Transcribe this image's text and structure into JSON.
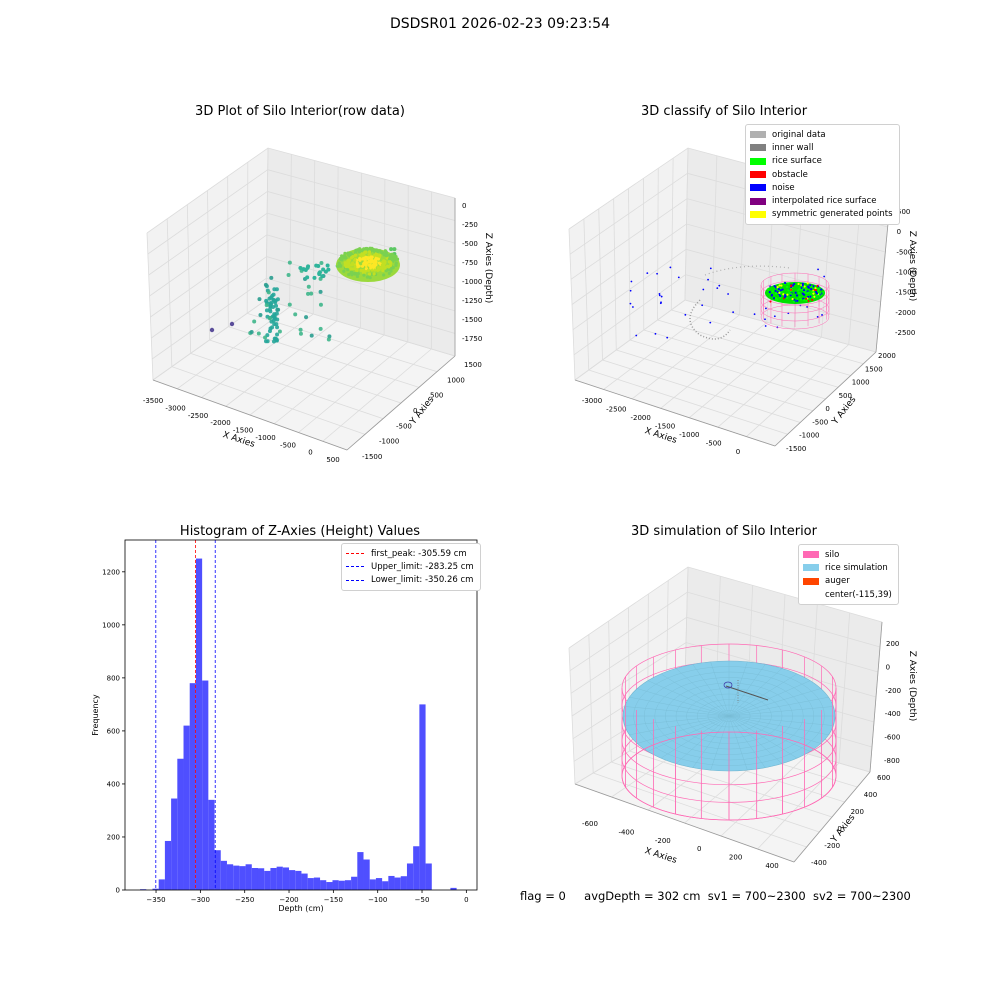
{
  "figure": {
    "title": "DSDSR01 2026-02-23 09:23:54"
  },
  "panels": {
    "raw": {
      "title": "3D Plot of Silo Interior(row data)",
      "x_label": "X Axies",
      "y_label": "Y Axies",
      "z_label": "Z Axies (Depth)",
      "x_ticks": [
        "-3500",
        "-3000",
        "-2500",
        "-2000",
        "-1500",
        "-1000",
        "-500",
        "0",
        "500"
      ],
      "y_ticks": [
        "-1500",
        "-1000",
        "-500",
        "0",
        "500",
        "1000",
        "1500"
      ],
      "z_ticks": [
        "0",
        "-250",
        "-500",
        "-750",
        "-1000",
        "-1250",
        "-1500",
        "-1750"
      ]
    },
    "classify": {
      "title": "3D classify of Silo Interior",
      "x_label": "X Axies",
      "y_label": "Y Axies",
      "z_label": "Z Axies (Depth)",
      "x_ticks": [
        "-3000",
        "-2500",
        "-2000",
        "-1500",
        "-1000",
        "-500",
        "0"
      ],
      "y_ticks": [
        "-1500",
        "-1000",
        "-500",
        "0",
        "500",
        "1000",
        "1500",
        "2000"
      ],
      "z_ticks": [
        "500",
        "0",
        "-500",
        "-1000",
        "-1500",
        "-2000",
        "-2500"
      ],
      "z_top_partial": "500",
      "legend": [
        {
          "label": "original data",
          "color": "#b0b0b0"
        },
        {
          "label": "inner wall",
          "color": "#808080"
        },
        {
          "label": "rice surface",
          "color": "#00ff00"
        },
        {
          "label": "obstacle",
          "color": "#ff0000"
        },
        {
          "label": "noise",
          "color": "#0000ff"
        },
        {
          "label": "interpolated rice surface",
          "color": "#800080"
        },
        {
          "label": "symmetric generated points",
          "color": "#ffff00"
        }
      ]
    },
    "simulation": {
      "title": "3D simulation of Silo Interior",
      "x_label": "X Axies",
      "y_label": "Y Axies",
      "z_label": "Z Axies (Depth)",
      "x_ticks": [
        "-600",
        "-400",
        "-200",
        "0",
        "200",
        "400"
      ],
      "y_ticks": [
        "-400",
        "-200",
        "0",
        "200",
        "400",
        "600"
      ],
      "z_ticks": [
        "200",
        "0",
        "-200",
        "-400",
        "-600",
        "-800"
      ],
      "legend": [
        {
          "label": "silo",
          "color": "#ff69b4"
        },
        {
          "label": "rice simulation",
          "color": "#87ceeb"
        },
        {
          "label": "auger",
          "color": "#ff4500"
        },
        {
          "label": "center(-115,39)",
          "color": ""
        }
      ]
    },
    "histogram": {
      "title": "Histogram of Z-Axies (Height) Values"
    }
  },
  "status": {
    "flag": "flag = 0",
    "avg": "avgDepth = 302 cm",
    "sv1": "sv1 = 700~2300",
    "sv2": "sv2 = 700~2300"
  },
  "colors": {
    "bars": "#4646ff",
    "peak": "#ff0000",
    "limit": "#0000ff",
    "silo": "#ff69b4",
    "rice": "#87ceeb"
  },
  "chart_data": {
    "type": "bar",
    "title": "Histogram of Z-Axies (Height) Values",
    "xlabel": "Depth (cm)",
    "ylabel": "Frequency",
    "xlim": [
      -385,
      12
    ],
    "ylim": [
      0,
      1320
    ],
    "x_ticks": [
      -350,
      -300,
      -250,
      -200,
      -150,
      -100,
      -50,
      0
    ],
    "y_ticks": [
      0,
      200,
      400,
      600,
      800,
      1000,
      1200
    ],
    "bin_width": 7,
    "bin_starts": [
      -368,
      -361,
      -354,
      -347,
      -340,
      -333,
      -326,
      -319,
      -312,
      -305,
      -298,
      -291,
      -284,
      -277,
      -270,
      -263,
      -256,
      -249,
      -242,
      -235,
      -228,
      -221,
      -214,
      -207,
      -200,
      -193,
      -186,
      -179,
      -172,
      -165,
      -158,
      -151,
      -144,
      -137,
      -130,
      -123,
      -116,
      -109,
      -102,
      -95,
      -88,
      -81,
      -74,
      -67,
      -60,
      -53,
      -46,
      -39,
      -32,
      -25,
      -18,
      -11,
      -4
    ],
    "values": [
      3,
      0,
      5,
      40,
      185,
      345,
      495,
      620,
      780,
      1250,
      790,
      340,
      150,
      110,
      97,
      92,
      90,
      97,
      83,
      82,
      72,
      83,
      88,
      85,
      75,
      72,
      62,
      45,
      47,
      37,
      30,
      37,
      35,
      37,
      50,
      143,
      115,
      40,
      45,
      33,
      53,
      47,
      52,
      100,
      165,
      700,
      100,
      0,
      0,
      0,
      8,
      0,
      0
    ],
    "vlines": [
      {
        "label": "first_peak: -305.59 cm",
        "x": -305.59,
        "color": "#ff0000"
      },
      {
        "label": "Upper_limit: -283.25 cm",
        "x": -283.25,
        "color": "#0000ff"
      },
      {
        "label": "Lower_limit: -350.26 cm",
        "x": -350.26,
        "color": "#0000ff"
      }
    ],
    "legend_position": "upper right",
    "grid": false
  }
}
